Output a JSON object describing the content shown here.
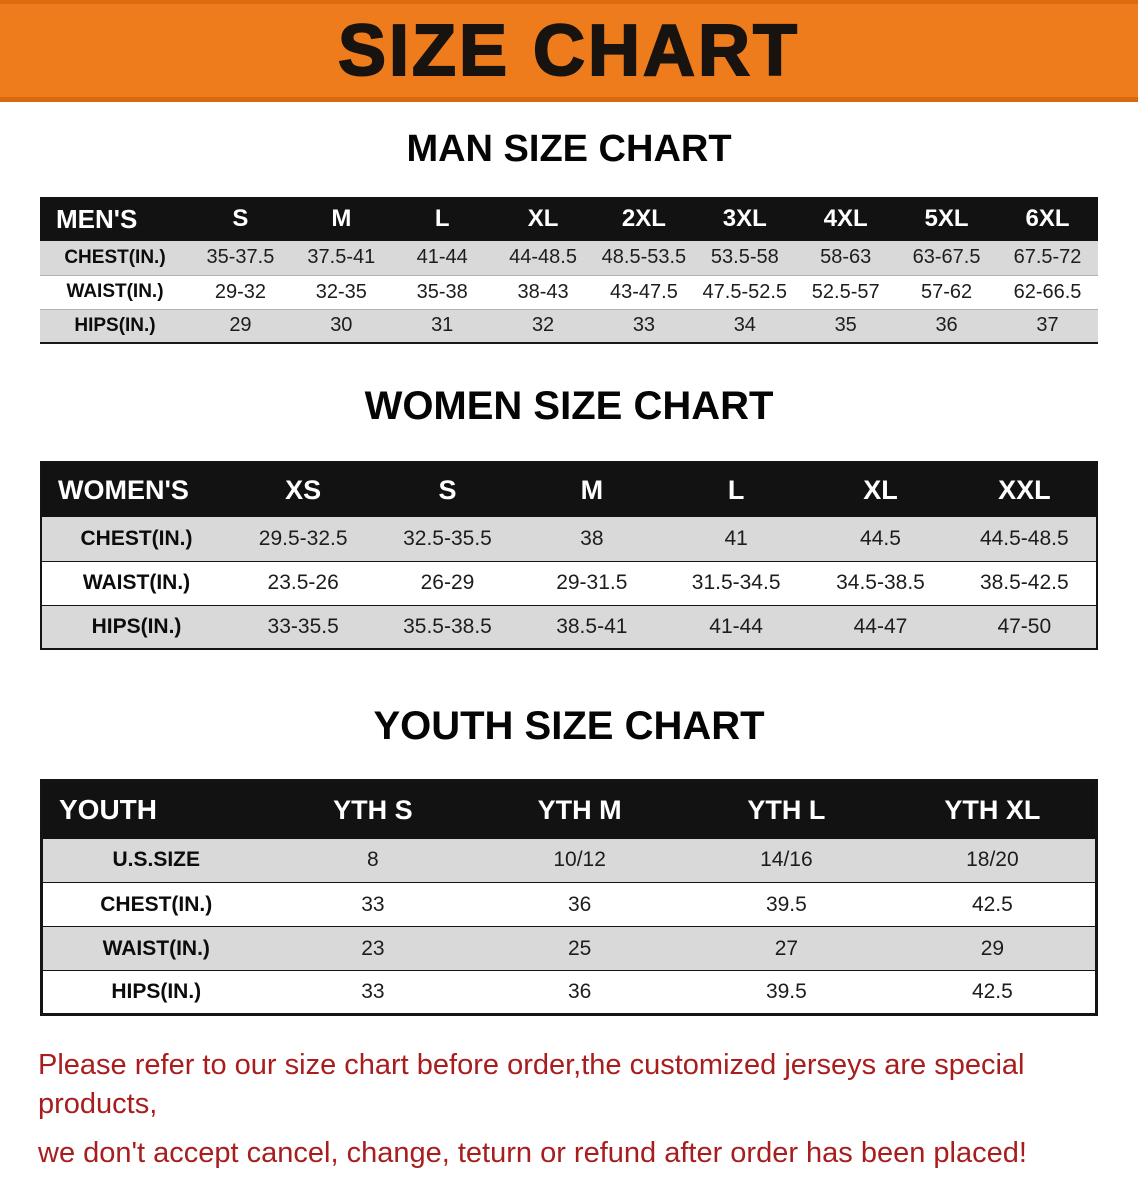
{
  "banner": {
    "title": "SIZE CHART"
  },
  "colors": {
    "banner-bg": "#ee7c1d",
    "banner-text": "#18130e",
    "header-bg": "#121212",
    "header-text": "#ffffff",
    "stripe": "#d9d9d9",
    "notice-text": "#a81d1d"
  },
  "sections": [
    {
      "heading": "MAN SIZE CHART",
      "table": {
        "header": [
          "MEN'S",
          "S",
          "M",
          "L",
          "XL",
          "2XL",
          "3XL",
          "4XL",
          "5XL",
          "6XL"
        ],
        "rows": [
          [
            "CHEST(IN.)",
            "35-37.5",
            "37.5-41",
            "41-44",
            "44-48.5",
            "48.5-53.5",
            "53.5-58",
            "58-63",
            "63-67.5",
            "67.5-72"
          ],
          [
            "WAIST(IN.)",
            "29-32",
            "32-35",
            "35-38",
            "38-43",
            "43-47.5",
            "47.5-52.5",
            "52.5-57",
            "57-62",
            "62-66.5"
          ],
          [
            "HIPS(IN.)",
            "29",
            "30",
            "31",
            "32",
            "33",
            "34",
            "35",
            "36",
            "37"
          ]
        ]
      }
    },
    {
      "heading": "WOMEN SIZE CHART",
      "table": {
        "header": [
          "WOMEN'S",
          "XS",
          "S",
          "M",
          "L",
          "XL",
          "XXL"
        ],
        "rows": [
          [
            "CHEST(IN.)",
            "29.5-32.5",
            "32.5-35.5",
            "38",
            "41",
            "44.5",
            "44.5-48.5"
          ],
          [
            "WAIST(IN.)",
            "23.5-26",
            "26-29",
            "29-31.5",
            "31.5-34.5",
            "34.5-38.5",
            "38.5-42.5"
          ],
          [
            "HIPS(IN.)",
            "33-35.5",
            "35.5-38.5",
            "38.5-41",
            "41-44",
            "44-47",
            "47-50"
          ]
        ]
      }
    },
    {
      "heading": "YOUTH SIZE CHART",
      "table": {
        "header": [
          "YOUTH",
          "YTH S",
          "YTH M",
          "YTH L",
          "YTH XL"
        ],
        "rows": [
          [
            "U.S.SIZE",
            "8",
            "10/12",
            "14/16",
            "18/20"
          ],
          [
            "CHEST(IN.)",
            "33",
            "36",
            "39.5",
            "42.5"
          ],
          [
            "WAIST(IN.)",
            "23",
            "25",
            "27",
            "29"
          ],
          [
            "HIPS(IN.)",
            "33",
            "36",
            "39.5",
            "42.5"
          ]
        ]
      }
    }
  ],
  "footer": {
    "line1": "Please refer to our size chart before order,the customized jerseys are special products,",
    "line2": "we don't accept cancel, change, teturn or refund after order has been placed!"
  }
}
